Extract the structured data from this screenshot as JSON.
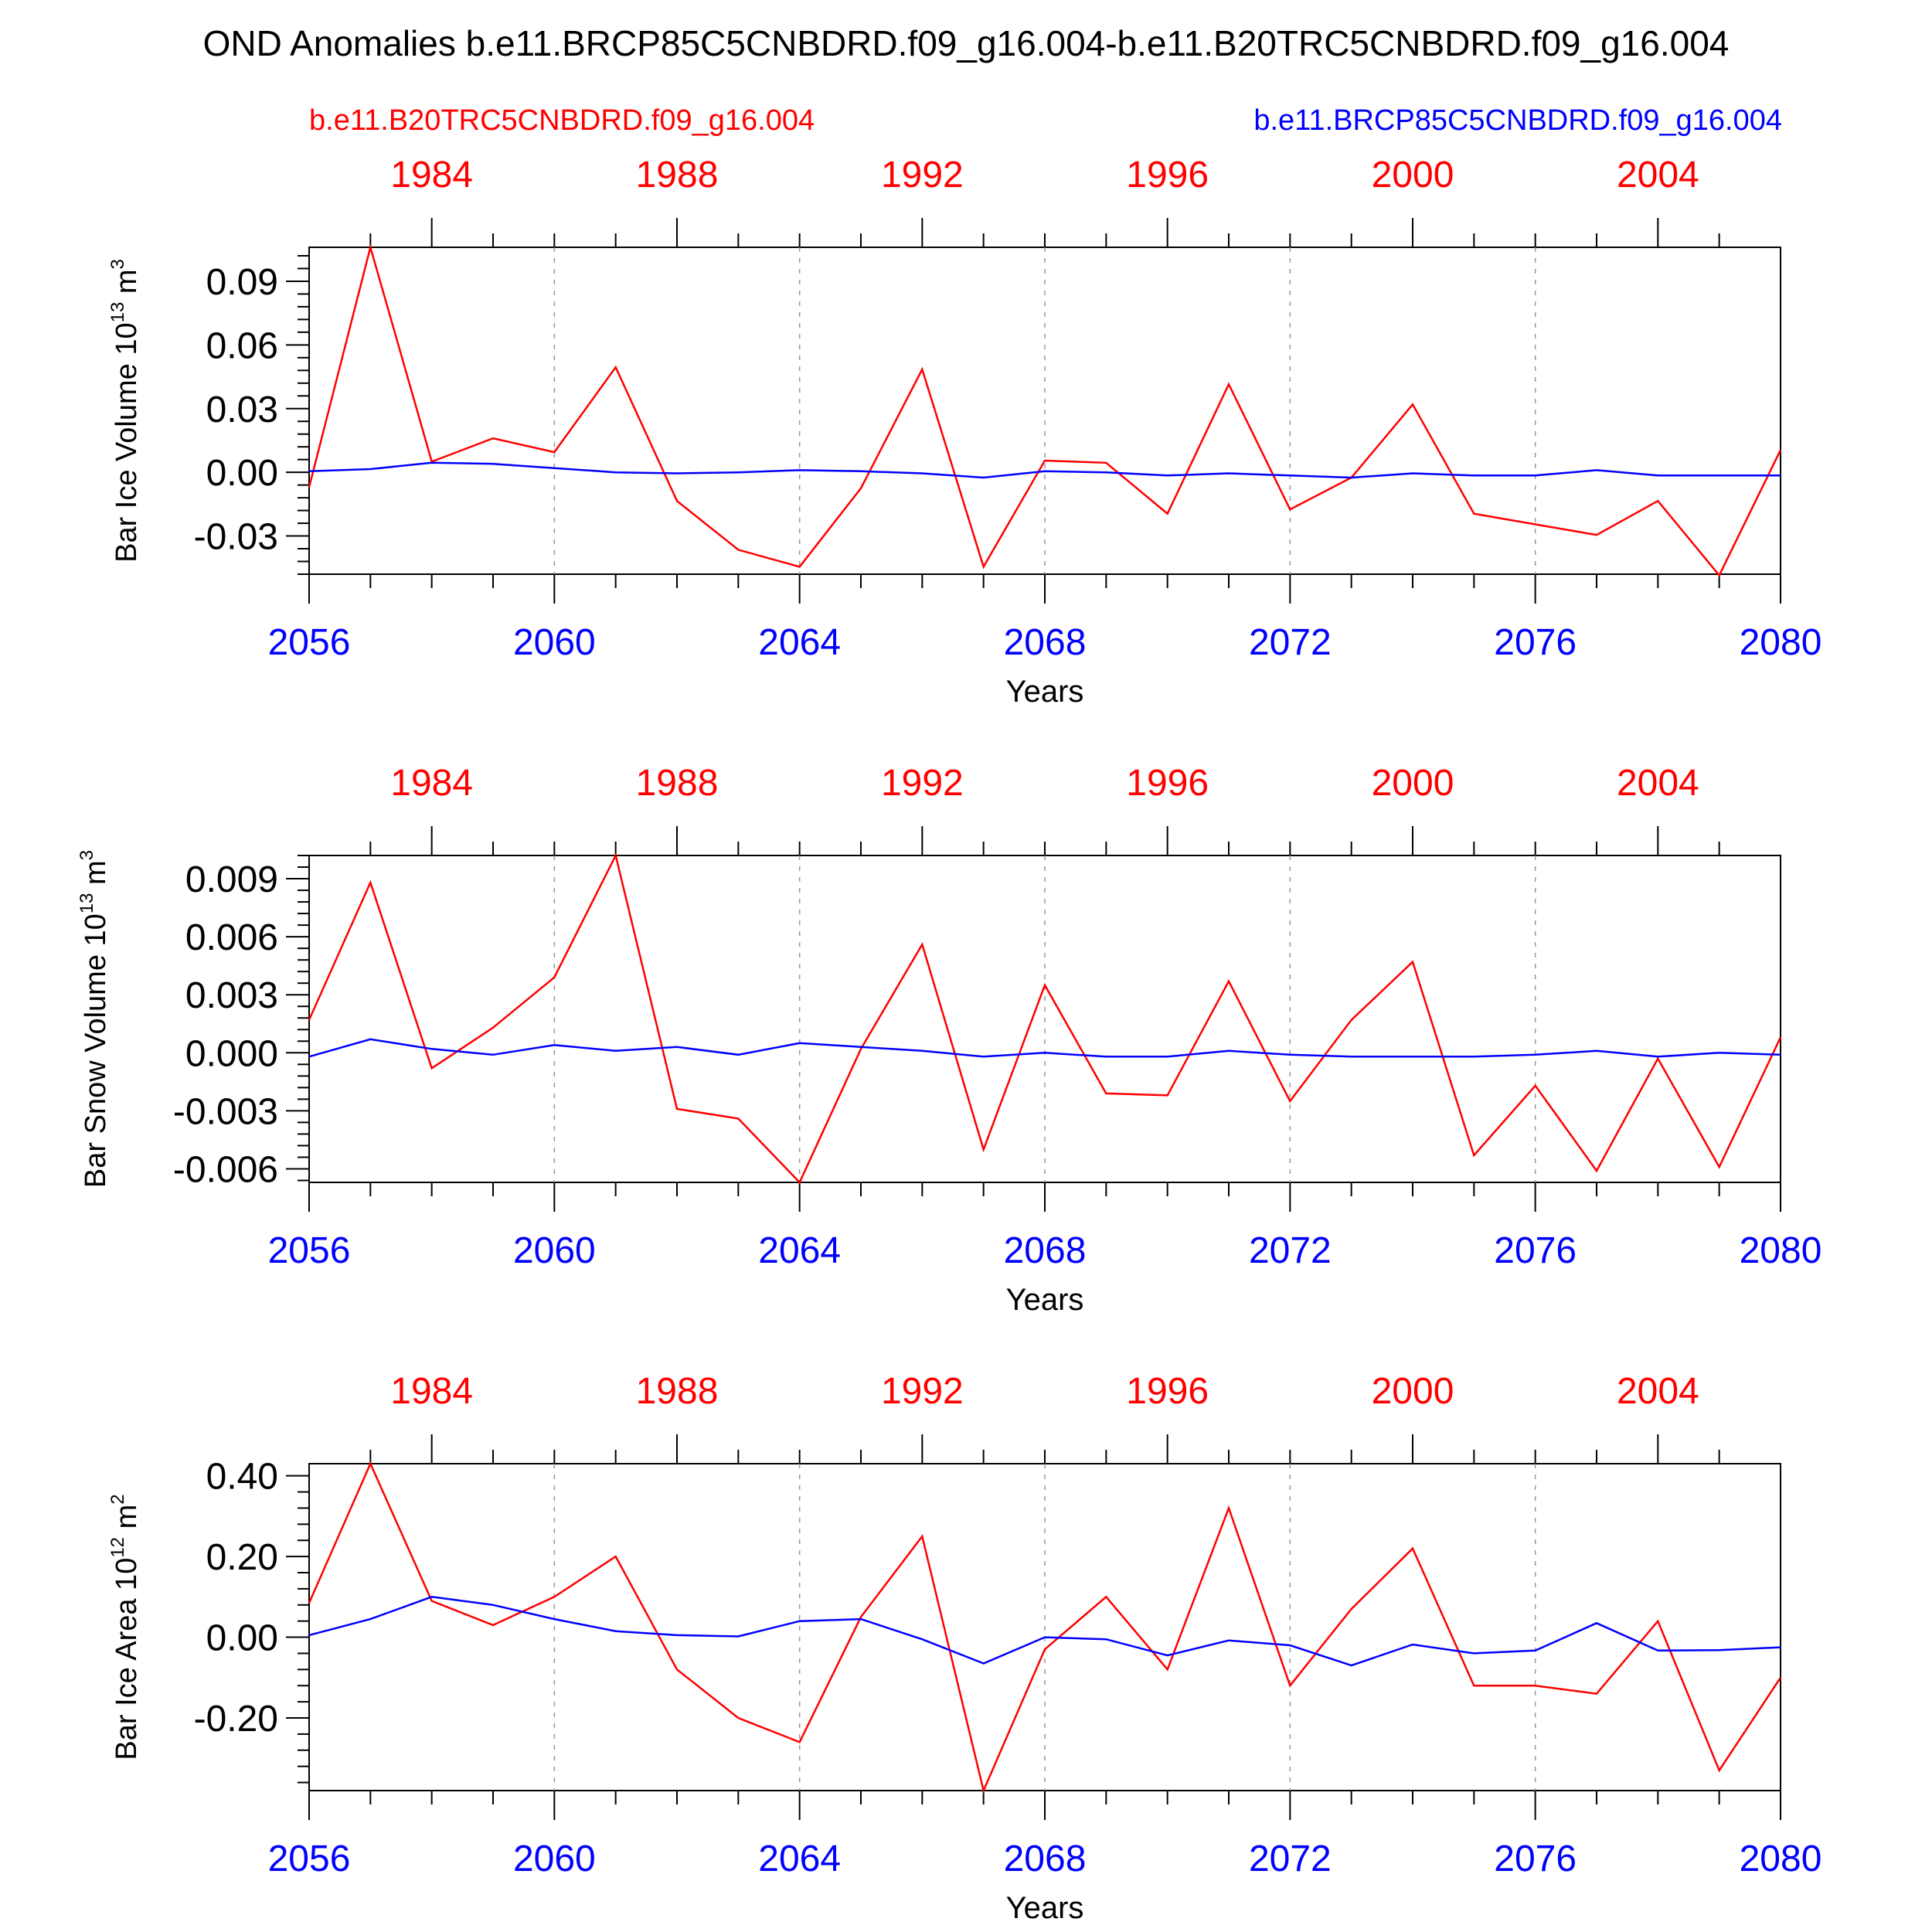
{
  "title": "OND Anomalies b.e11.BRCP85C5CNBDRD.f09_g16.004-b.e11.B20TRC5CNBDRD.f09_g16.004",
  "legend": {
    "left_label": "b.e11.B20TRC5CNBDRD.f09_g16.004",
    "right_label": "b.e11.BRCP85C5CNBDRD.f09_g16.004",
    "left_color": "#ff0000",
    "right_color": "#0000ff"
  },
  "chart_data": [
    {
      "type": "line",
      "ylabel_main": "Bar Ice Volume 10",
      "ylabel_exp": "13",
      "ylabel_unit": " m",
      "ylabel_unit_exp": "3",
      "xlabel": "Years",
      "ylim": [
        -0.048,
        0.106
      ],
      "yticks": [
        0.09,
        0.06,
        0.03,
        0.0,
        -0.03
      ],
      "ytick_labels": [
        "0.09",
        "0.06",
        "0.03",
        "0.00",
        "-0.03"
      ],
      "x_bottom_ticks": [
        "2056",
        "2060",
        "2064",
        "2068",
        "2072",
        "2076",
        "2080"
      ],
      "x_top_ticks": [
        "1984",
        "1988",
        "1992",
        "1996",
        "2000",
        "2004"
      ],
      "x": [
        2056,
        2057,
        2058,
        2059,
        2060,
        2061,
        2062,
        2063,
        2064,
        2065,
        2066,
        2067,
        2068,
        2069,
        2070,
        2071,
        2072,
        2073,
        2074,
        2075,
        2076,
        2077,
        2078,
        2079,
        2080
      ],
      "series": [
        {
          "name": "b.e11.B20TRC5CNBDRD.f09_g16.004",
          "color": "#ff0000",
          "values": [
            -0.007,
            0.106,
            0.005,
            0.016,
            0.0095,
            0.0495,
            -0.0135,
            -0.0365,
            -0.0445,
            -0.0075,
            0.0485,
            -0.0445,
            0.0055,
            0.0045,
            -0.0195,
            0.0415,
            -0.0175,
            -0.0025,
            0.032,
            -0.0195,
            -0.0245,
            -0.0295,
            -0.0135,
            -0.0485,
            0.0105
          ]
        },
        {
          "name": "b.e11.BRCP85C5CNBDRD.f09_g16.004",
          "color": "#0000ff",
          "values": [
            0.0005,
            0.0015,
            0.0045,
            0.004,
            0.002,
            0.0,
            -0.0005,
            0.0,
            0.001,
            0.0005,
            -0.0005,
            -0.0025,
            0.0005,
            0.0,
            -0.0015,
            -0.0005,
            -0.0015,
            -0.0025,
            -0.0005,
            -0.0015,
            -0.0015,
            0.001,
            -0.0015,
            -0.0015,
            -0.0015
          ]
        }
      ]
    },
    {
      "type": "line",
      "ylabel_main": "Bar Snow Volume 10",
      "ylabel_exp": "13",
      "ylabel_unit": " m",
      "ylabel_unit_exp": "3",
      "xlabel": "Years",
      "ylim": [
        -0.0067,
        0.0102
      ],
      "yticks": [
        0.009,
        0.006,
        0.003,
        0.0,
        -0.003,
        -0.006
      ],
      "ytick_labels": [
        "0.009",
        "0.006",
        "0.003",
        "0.000",
        "-0.003",
        "-0.006"
      ],
      "x_bottom_ticks": [
        "2056",
        "2060",
        "2064",
        "2068",
        "2072",
        "2076",
        "2080"
      ],
      "x_top_ticks": [
        "1984",
        "1988",
        "1992",
        "1996",
        "2000",
        "2004"
      ],
      "x": [
        2056,
        2057,
        2058,
        2059,
        2060,
        2061,
        2062,
        2063,
        2064,
        2065,
        2066,
        2067,
        2068,
        2069,
        2070,
        2071,
        2072,
        2073,
        2074,
        2075,
        2076,
        2077,
        2078,
        2079,
        2080
      ],
      "series": [
        {
          "name": "b.e11.B20TRC5CNBDRD.f09_g16.004",
          "color": "#ff0000",
          "values": [
            0.0017,
            0.0088,
            -0.0008,
            0.0013,
            0.0039,
            0.0102,
            -0.0029,
            -0.0034,
            -0.0067,
            0.0002,
            0.0056,
            -0.005,
            0.0035,
            -0.0021,
            -0.0022,
            0.0037,
            -0.0025,
            0.0017,
            0.0047,
            -0.0053,
            -0.0017,
            -0.0061,
            -0.0003,
            -0.0059,
            0.0008
          ]
        },
        {
          "name": "b.e11.BRCP85C5CNBDRD.f09_g16.004",
          "color": "#0000ff",
          "values": [
            -0.0002,
            0.0007,
            0.0002,
            -0.0001,
            0.0004,
            0.0001,
            0.0003,
            -0.0001,
            0.0005,
            0.0003,
            0.0001,
            -0.0002,
            0.0,
            -0.0002,
            -0.0002,
            0.0001,
            -0.0001,
            -0.0002,
            -0.0002,
            -0.0002,
            -0.0001,
            0.0001,
            -0.0002,
            0.0,
            -0.0001
          ]
        }
      ]
    },
    {
      "type": "line",
      "ylabel_main": "Bar Ice Area 10",
      "ylabel_exp": "12",
      "ylabel_unit": " m",
      "ylabel_unit_exp": "2",
      "xlabel": "Years",
      "ylim": [
        -0.38,
        0.43
      ],
      "yticks": [
        0.4,
        0.2,
        0.0,
        -0.2
      ],
      "ytick_labels": [
        "0.40",
        "0.20",
        "0.00",
        "-0.20"
      ],
      "x_bottom_ticks": [
        "2056",
        "2060",
        "2064",
        "2068",
        "2072",
        "2076",
        "2080"
      ],
      "x_top_ticks": [
        "1984",
        "1988",
        "1992",
        "1996",
        "2000",
        "2004"
      ],
      "x": [
        2056,
        2057,
        2058,
        2059,
        2060,
        2061,
        2062,
        2063,
        2064,
        2065,
        2066,
        2067,
        2068,
        2069,
        2070,
        2071,
        2072,
        2073,
        2074,
        2075,
        2076,
        2077,
        2078,
        2079,
        2080
      ],
      "series": [
        {
          "name": "b.e11.B20TRC5CNBDRD.f09_g16.004",
          "color": "#ff0000",
          "values": [
            0.085,
            0.43,
            0.09,
            0.03,
            0.1,
            0.2,
            -0.08,
            -0.2,
            -0.26,
            0.05,
            0.25,
            -0.38,
            -0.03,
            0.1,
            -0.08,
            0.32,
            -0.12,
            0.07,
            0.22,
            -0.12,
            -0.12,
            -0.14,
            0.04,
            -0.33,
            -0.1
          ]
        },
        {
          "name": "b.e11.BRCP85C5CNBDRD.f09_g16.004",
          "color": "#0000ff",
          "values": [
            0.005,
            0.045,
            0.1,
            0.08,
            0.045,
            0.015,
            0.005,
            0.002,
            0.04,
            0.045,
            -0.005,
            -0.065,
            0.0,
            -0.005,
            -0.045,
            -0.008,
            -0.02,
            -0.07,
            -0.018,
            -0.04,
            -0.033,
            0.035,
            -0.033,
            -0.032,
            -0.025
          ]
        }
      ]
    }
  ]
}
